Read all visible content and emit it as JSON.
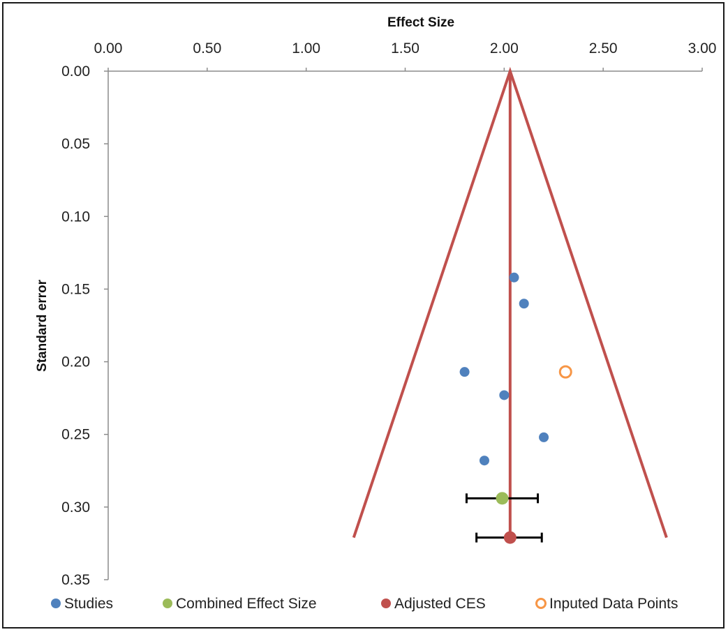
{
  "chart_data": {
    "type": "scatter",
    "xlabel": "Effect Size",
    "ylabel": "Standard error",
    "xlim": [
      0.0,
      3.0
    ],
    "ylim": [
      0.0,
      0.35
    ],
    "y_reversed": true,
    "x_axis_position": "top",
    "legend_position": "bottom",
    "grid": false,
    "x_ticks": [
      "0.00",
      "0.50",
      "1.00",
      "1.50",
      "2.00",
      "2.50",
      "3.00"
    ],
    "y_ticks": [
      "0.00",
      "0.05",
      "0.10",
      "0.15",
      "0.20",
      "0.25",
      "0.30",
      "0.35"
    ],
    "series": [
      {
        "name": "Studies",
        "color": "#4f81bd",
        "marker": "filled-circle",
        "points": [
          {
            "x": 2.05,
            "y": 0.142
          },
          {
            "x": 2.1,
            "y": 0.16
          },
          {
            "x": 1.8,
            "y": 0.207
          },
          {
            "x": 2.0,
            "y": 0.223
          },
          {
            "x": 2.2,
            "y": 0.252
          },
          {
            "x": 1.9,
            "y": 0.268
          }
        ]
      },
      {
        "name": "Combined Effect Size",
        "color": "#9bbb59",
        "marker": "filled-circle",
        "points": [
          {
            "x": 1.99,
            "y": 0.294,
            "ci": [
              1.81,
              2.17
            ]
          }
        ]
      },
      {
        "name": "Adjusted CES",
        "color": "#c0504d",
        "marker": "filled-circle",
        "points": [
          {
            "x": 2.03,
            "y": 0.321,
            "ci": [
              1.86,
              2.19
            ]
          }
        ]
      },
      {
        "name": "Inputed Data Points",
        "color": "#f79646",
        "marker": "hollow-circle",
        "points": [
          {
            "x": 2.31,
            "y": 0.207
          }
        ]
      }
    ],
    "funnel": {
      "color": "#c0504d",
      "apex": {
        "x": 2.03,
        "y": 0.0
      },
      "left_end": {
        "x": 1.24,
        "y": 0.321
      },
      "right_end": {
        "x": 2.82,
        "y": 0.321
      },
      "center_line": {
        "x": 2.03,
        "y_from": 0.0,
        "y_to": 0.321
      }
    }
  }
}
